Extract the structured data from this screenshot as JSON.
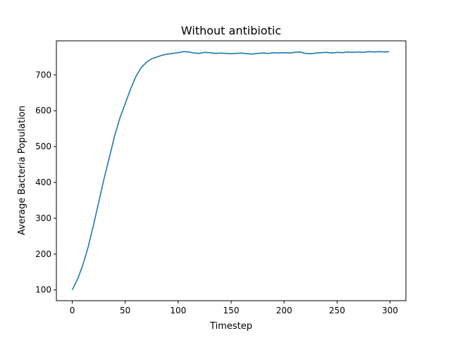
{
  "chart_data": {
    "type": "line",
    "title": "Without antibiotic",
    "xlabel": "Timestep",
    "ylabel": "Average Bacteria Population",
    "xlim": [
      -15,
      315
    ],
    "ylim": [
      70,
      795
    ],
    "xticks": [
      0,
      50,
      100,
      150,
      200,
      250,
      300
    ],
    "yticks": [
      100,
      200,
      300,
      400,
      500,
      600,
      700
    ],
    "grid": false,
    "line_color": "#1f77b4",
    "series": [
      {
        "x": [
          0,
          5,
          10,
          15,
          20,
          25,
          30,
          35,
          40,
          45,
          50,
          55,
          60,
          65,
          70,
          75,
          80,
          85,
          90,
          95,
          100,
          105,
          110,
          115,
          120,
          125,
          130,
          135,
          140,
          145,
          150,
          155,
          160,
          165,
          170,
          175,
          180,
          185,
          190,
          195,
          200,
          205,
          210,
          215,
          220,
          225,
          230,
          235,
          240,
          245,
          250,
          255,
          260,
          265,
          270,
          275,
          280,
          285,
          290,
          295,
          299
        ],
        "y": [
          100,
          130,
          170,
          220,
          280,
          345,
          410,
          470,
          530,
          580,
          620,
          660,
          695,
          720,
          735,
          745,
          750,
          755,
          758,
          760,
          762,
          765,
          764,
          761,
          760,
          763,
          762,
          760,
          761,
          760,
          759,
          760,
          761,
          759,
          758,
          760,
          761,
          760,
          762,
          761,
          762,
          761,
          763,
          764,
          760,
          759,
          761,
          762,
          763,
          761,
          763,
          762,
          764,
          763,
          764,
          763,
          765,
          764,
          765,
          764,
          765
        ]
      }
    ]
  }
}
